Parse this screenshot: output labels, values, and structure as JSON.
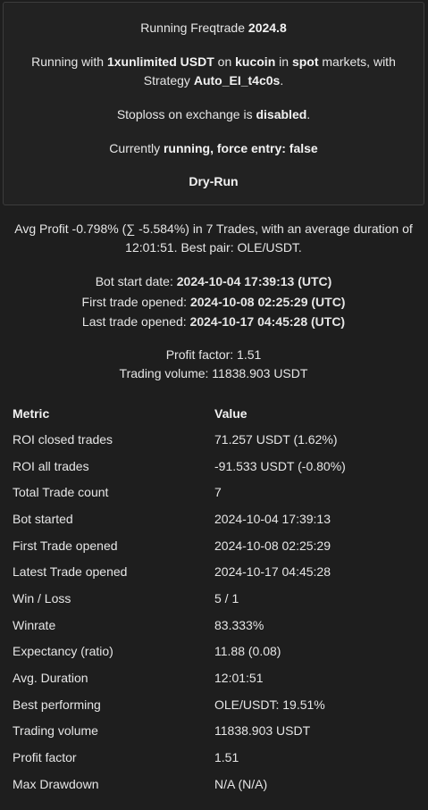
{
  "status": {
    "running_prefix": "Running Freqtrade ",
    "version": "2024.8",
    "running_with_1": "Running with ",
    "stake": "1xunlimited USDT",
    "on": " on ",
    "exchange": "kucoin",
    "in": " in ",
    "market": "spot",
    "markets_with": " markets, with",
    "strategy_prefix": "Strategy ",
    "strategy": "Auto_EI_t4c0s",
    "strategy_suffix": ".",
    "stoploss_prefix": "Stoploss on exchange is ",
    "stoploss_state": "disabled",
    "stoploss_suffix": ".",
    "currently": "Currently ",
    "run_state": "running",
    "force_entry": ", force entry: false",
    "mode": "Dry-Run"
  },
  "summary": {
    "avg_profit_line1": "Avg Profit -0.798% (∑ -5.584%) in 7 Trades, with an average duration of",
    "avg_profit_line2": "12:01:51. Best pair: OLE/USDT.",
    "bot_start_label": "Bot start date: ",
    "bot_start_value": "2024-10-04 17:39:13 (UTC)",
    "first_trade_label": "First trade opened: ",
    "first_trade_value": "2024-10-08 02:25:29 (UTC)",
    "last_trade_label": "Last trade opened: ",
    "last_trade_value": "2024-10-17 04:45:28 (UTC)",
    "profit_factor": "Profit factor: 1.51",
    "trading_volume": "Trading volume: 11838.903 USDT"
  },
  "table": {
    "headers": [
      "Metric",
      "Value"
    ],
    "rows": [
      [
        "ROI closed trades",
        "71.257 USDT (1.62%)"
      ],
      [
        "ROI all trades",
        "-91.533 USDT (-0.80%)"
      ],
      [
        "Total Trade count",
        "7"
      ],
      [
        "Bot started",
        "2024-10-04 17:39:13"
      ],
      [
        "First Trade opened",
        "2024-10-08 02:25:29"
      ],
      [
        "Latest Trade opened",
        "2024-10-17 04:45:28"
      ],
      [
        "Win / Loss",
        "5 / 1"
      ],
      [
        "Winrate",
        "83.333%"
      ],
      [
        "Expectancy (ratio)",
        "11.88 (0.08)"
      ],
      [
        "Avg. Duration",
        "12:01:51"
      ],
      [
        "Best performing",
        "OLE/USDT: 19.51%"
      ],
      [
        "Trading volume",
        "11838.903 USDT"
      ],
      [
        "Profit factor",
        "1.51"
      ],
      [
        "Max Drawdown",
        "N/A (N/A)"
      ]
    ]
  }
}
